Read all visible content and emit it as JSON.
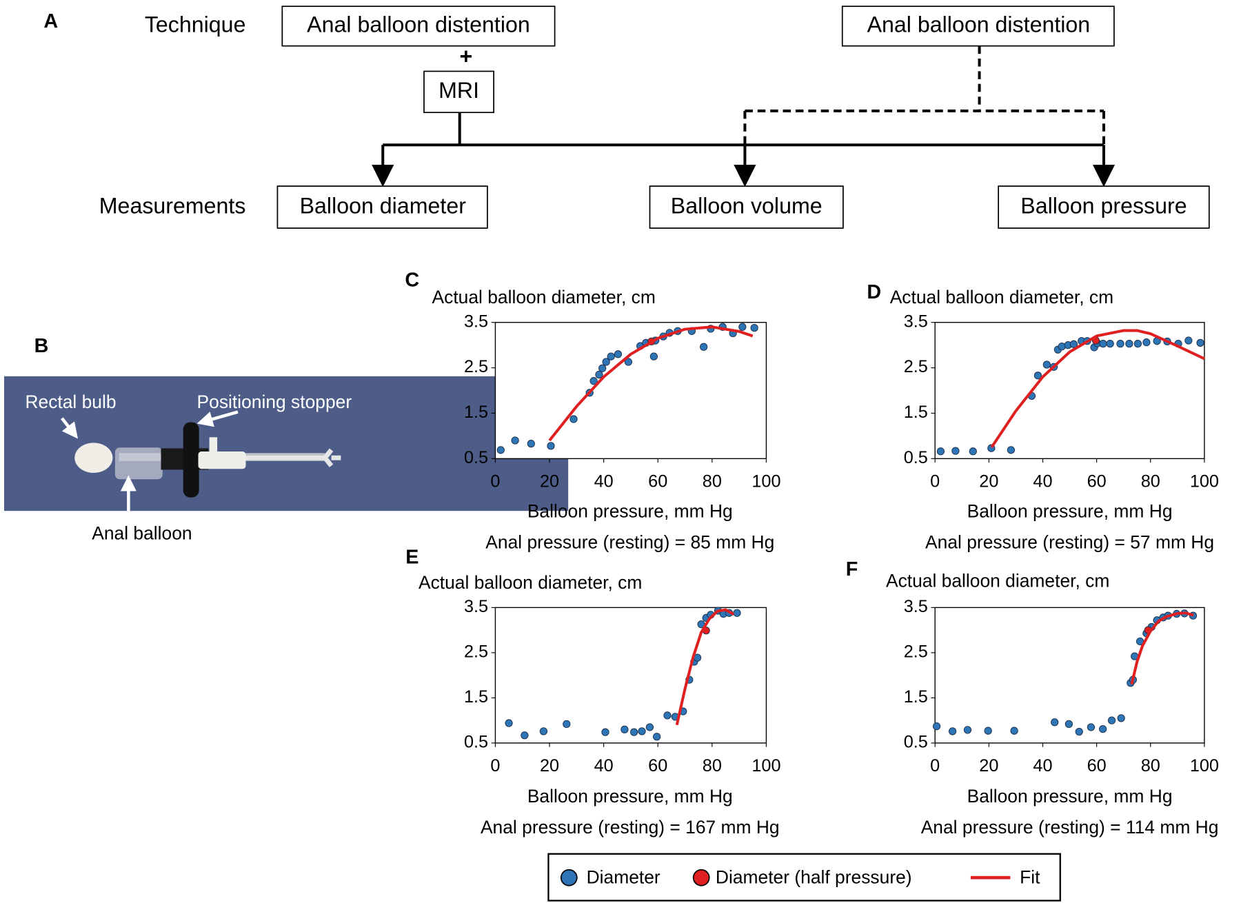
{
  "panel_labels": [
    "A",
    "B",
    "C",
    "D",
    "E",
    "F"
  ],
  "diagram": {
    "technique_label": "Technique",
    "measurements_label": "Measurements",
    "technique_boxes": [
      "Anal balloon distention",
      "Anal balloon distention"
    ],
    "plus": "+",
    "mri": "MRI",
    "measurement_boxes": [
      "Balloon diameter",
      "Balloon volume",
      "Balloon pressure"
    ]
  },
  "photo": {
    "labels": [
      "Rectal bulb",
      "Positioning stopper",
      "Anal balloon"
    ]
  },
  "chart_data": [
    {
      "type": "scatter",
      "y_label": "Actual balloon diameter, cm",
      "x_label": "Balloon pressure, mm Hg",
      "annotation": "Anal pressure (resting) = 85 mm Hg",
      "xlim": [
        0,
        100
      ],
      "xticks": [
        0,
        20,
        40,
        60,
        80,
        100
      ],
      "ylim": [
        0.5,
        3.5
      ],
      "yticks": [
        0.5,
        1.5,
        2.5,
        3.5
      ],
      "series": [
        {
          "name": "Diameter",
          "color": "#2e75b6",
          "mark": "point",
          "x": [
            2.0,
            7.3,
            13.2,
            20.5,
            28.9,
            34.8,
            36.3,
            38.3,
            39.5,
            40.9,
            42.7,
            45.3,
            49.1,
            53.5,
            55.6,
            58.5,
            59.1,
            62.0,
            64.3,
            67.3,
            72.5,
            76.9,
            79.5,
            83.9,
            87.7,
            91.2,
            95.6
          ],
          "values": [
            0.69,
            0.9,
            0.83,
            0.78,
            1.37,
            1.95,
            2.21,
            2.35,
            2.49,
            2.63,
            2.75,
            2.8,
            2.63,
            2.98,
            3.05,
            2.75,
            3.1,
            3.19,
            3.27,
            3.31,
            3.31,
            2.96,
            3.36,
            3.4,
            3.26,
            3.4,
            3.38
          ]
        },
        {
          "name": "Diameter (half pressure)",
          "color": "#e02020",
          "mark": "point",
          "x": [
            57.6
          ],
          "values": [
            3.08
          ]
        },
        {
          "name": "Fit",
          "color": "#e02020",
          "mark": "line",
          "x": [
            20,
            30,
            40,
            50,
            60,
            70,
            80,
            90,
            95
          ],
          "values": [
            0.9,
            1.65,
            2.3,
            2.8,
            3.15,
            3.35,
            3.4,
            3.3,
            3.2
          ]
        }
      ]
    },
    {
      "type": "scatter",
      "y_label": "Actual balloon diameter, cm",
      "x_label": "Balloon pressure, mm Hg",
      "annotation": "Anal pressure (resting) = 57 mm Hg",
      "xlim": [
        0,
        100
      ],
      "xticks": [
        0,
        20,
        40,
        60,
        80,
        100
      ],
      "ylim": [
        0.5,
        3.5
      ],
      "yticks": [
        0.5,
        1.5,
        2.5,
        3.5
      ],
      "series": [
        {
          "name": "Diameter",
          "color": "#2e75b6",
          "mark": "point",
          "x": [
            2.1,
            7.6,
            14.1,
            20.9,
            28.2,
            35.9,
            38.2,
            41.5,
            44.1,
            45.6,
            47.1,
            49.4,
            51.5,
            54.4,
            56.5,
            59.1,
            60.3,
            62.4,
            65.0,
            68.8,
            72.1,
            75.3,
            78.5,
            82.4,
            86.2,
            90.3,
            94.1,
            98.5
          ],
          "values": [
            0.66,
            0.67,
            0.66,
            0.73,
            0.69,
            1.88,
            2.33,
            2.57,
            2.52,
            2.9,
            2.97,
            3.0,
            3.02,
            3.09,
            3.09,
            2.95,
            3.04,
            3.03,
            3.03,
            3.03,
            3.03,
            3.03,
            3.06,
            3.09,
            3.08,
            3.03,
            3.1,
            3.05
          ]
        },
        {
          "name": "Diameter (half pressure)",
          "color": "#e02020",
          "mark": "point",
          "x": [
            59.7
          ],
          "values": [
            3.1
          ]
        },
        {
          "name": "Fit",
          "color": "#e02020",
          "mark": "line",
          "x": [
            21,
            30,
            40,
            50,
            60,
            70,
            75,
            80,
            90,
            100
          ],
          "values": [
            0.75,
            1.55,
            2.3,
            2.85,
            3.2,
            3.32,
            3.32,
            3.25,
            2.98,
            2.7
          ]
        }
      ]
    },
    {
      "type": "scatter",
      "y_label": "Actual balloon diameter, cm",
      "x_label": "Balloon pressure, mm Hg",
      "annotation": "Anal pressure (resting) = 167 mm Hg",
      "xlim": [
        0,
        100
      ],
      "xticks": [
        0,
        20,
        40,
        60,
        80,
        100
      ],
      "ylim": [
        0.5,
        3.5
      ],
      "yticks": [
        0.5,
        1.5,
        2.5,
        3.5
      ],
      "series": [
        {
          "name": "Diameter",
          "color": "#2e75b6",
          "mark": "point",
          "x": [
            5.0,
            10.8,
            17.8,
            26.3,
            40.6,
            47.7,
            51.2,
            54.1,
            57.0,
            59.6,
            63.5,
            66.4,
            69.3,
            71.6,
            73.4,
            74.6,
            76.0,
            77.8,
            79.5,
            82.2,
            84.2,
            86.3,
            89.2
          ],
          "values": [
            0.94,
            0.67,
            0.76,
            0.92,
            0.74,
            0.8,
            0.74,
            0.76,
            0.85,
            0.64,
            1.11,
            1.08,
            1.2,
            1.9,
            2.3,
            2.39,
            3.13,
            3.27,
            3.34,
            3.43,
            3.36,
            3.38,
            3.38
          ]
        },
        {
          "name": "Diameter (half pressure)",
          "color": "#e02020",
          "mark": "point",
          "x": [
            77.8
          ],
          "values": [
            2.99
          ]
        },
        {
          "name": "Fit",
          "color": "#e02020",
          "mark": "line",
          "x": [
            67,
            70,
            73,
            76,
            79,
            82,
            85,
            88
          ],
          "values": [
            0.9,
            1.7,
            2.4,
            2.95,
            3.25,
            3.42,
            3.45,
            3.35
          ]
        }
      ]
    },
    {
      "type": "scatter",
      "y_label": "Actual balloon diameter, cm",
      "x_label": "Balloon pressure, mm Hg",
      "annotation": "Anal pressure (resting) = 114 mm Hg",
      "xlim": [
        0,
        100
      ],
      "xticks": [
        0,
        20,
        40,
        60,
        80,
        100
      ],
      "ylim": [
        0.5,
        3.5
      ],
      "yticks": [
        0.5,
        1.5,
        2.5,
        3.5
      ],
      "series": [
        {
          "name": "Diameter",
          "color": "#2e75b6",
          "mark": "point",
          "x": [
            0.6,
            6.5,
            12.1,
            19.7,
            29.4,
            44.4,
            49.7,
            53.5,
            57.9,
            62.3,
            65.6,
            69.1,
            72.6,
            73.5,
            74.1,
            76.1,
            78.5,
            80.4,
            82.4,
            84.7,
            86.5,
            89.7,
            92.6,
            95.8
          ],
          "values": [
            0.87,
            0.76,
            0.79,
            0.77,
            0.77,
            0.96,
            0.92,
            0.75,
            0.85,
            0.81,
            1.0,
            1.05,
            1.83,
            1.9,
            2.42,
            2.75,
            2.93,
            3.07,
            3.22,
            3.28,
            3.32,
            3.36,
            3.37,
            3.32
          ]
        },
        {
          "name": "Diameter (half pressure)",
          "color": "#e02020",
          "mark": "point",
          "x": [
            79.1
          ],
          "values": [
            3.0
          ]
        },
        {
          "name": "Fit",
          "color": "#e02020",
          "mark": "line",
          "x": [
            73,
            75,
            77,
            80,
            83,
            86,
            90,
            93,
            96
          ],
          "values": [
            1.8,
            2.3,
            2.65,
            2.98,
            3.2,
            3.3,
            3.37,
            3.38,
            3.33
          ]
        }
      ]
    }
  ]
}
